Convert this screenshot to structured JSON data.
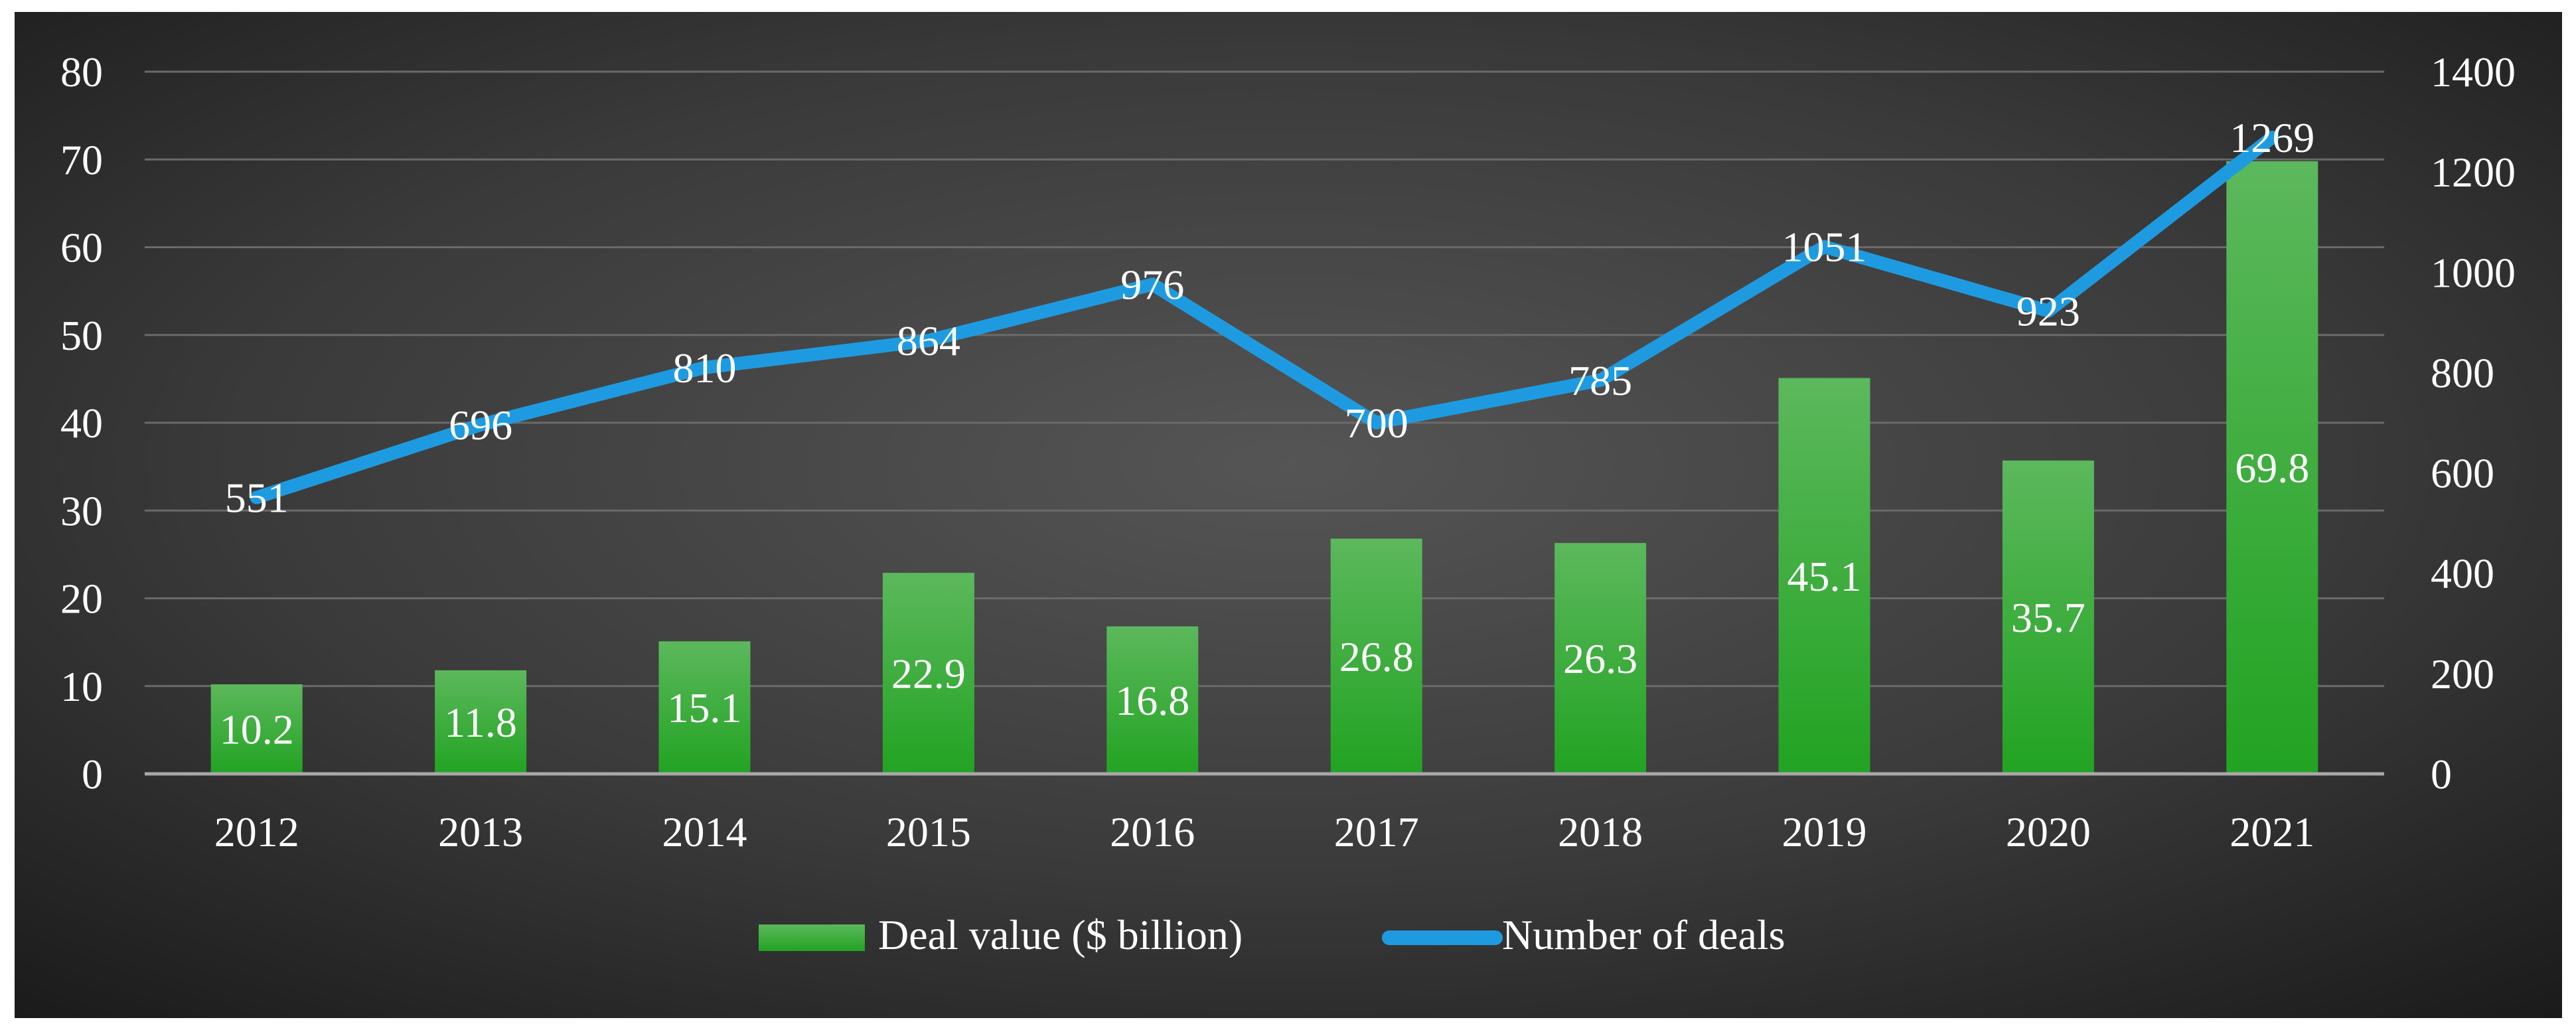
{
  "chart_data": {
    "type": "bar+line",
    "categories": [
      "2012",
      "2013",
      "2014",
      "2015",
      "2016",
      "2017",
      "2018",
      "2019",
      "2020",
      "2021"
    ],
    "series": [
      {
        "name": "Deal value ($ billion)",
        "type": "bar",
        "axis": "left",
        "values": [
          10.2,
          11.8,
          15.1,
          22.9,
          16.8,
          26.8,
          26.3,
          45.1,
          35.7,
          69.8
        ],
        "labels": [
          "10.2",
          "11.8",
          "15.1",
          "22.9",
          "16.8",
          "26.8",
          "26.3",
          "45.1",
          "35.7",
          "69.8"
        ]
      },
      {
        "name": "Number of deals",
        "type": "line",
        "axis": "right",
        "values": [
          551,
          696,
          810,
          864,
          976,
          700,
          785,
          1051,
          923,
          1269
        ],
        "labels": [
          "551",
          "696",
          "810",
          "864",
          "976",
          "700",
          "785",
          "1051",
          "923",
          "1269"
        ]
      }
    ],
    "y_left": {
      "range": [
        0,
        80
      ],
      "ticks": [
        "0",
        "10",
        "20",
        "30",
        "40",
        "50",
        "60",
        "70",
        "80"
      ]
    },
    "y_right": {
      "range": [
        0,
        1400
      ],
      "ticks": [
        "0",
        "200",
        "400",
        "600",
        "800",
        "1000",
        "1200",
        "1400"
      ]
    },
    "grid": true,
    "legend": "bottom-center",
    "title": "",
    "xlabel": "",
    "ylabel": ""
  },
  "colors": {
    "bar_top": "#5cb85c",
    "bar_bottom": "#22a322",
    "line": "#1e9be0",
    "text": "#ffffff",
    "grid": "#6a6a6a",
    "axis": "#a8a8a8",
    "bg_center": "#555555",
    "bg_edge": "#1a1a1a"
  }
}
